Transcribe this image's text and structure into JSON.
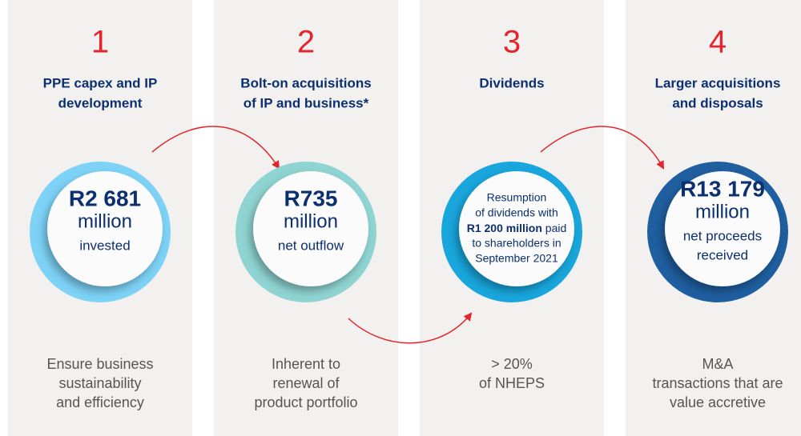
{
  "columns": [
    {
      "number": "1",
      "heading": [
        "PPE capex and IP",
        "development"
      ],
      "color": "#7dd2f6",
      "circle": {
        "figure": "R2 681",
        "unit": "million",
        "note": [
          "invested"
        ]
      },
      "footer": [
        "Ensure business",
        "sustainability",
        "and efficiency"
      ]
    },
    {
      "number": "2",
      "heading": [
        "Bolt-on acquisitions",
        "of IP and business*"
      ],
      "color": "#8fd4d2",
      "circle": {
        "figure": "R735",
        "unit": "million",
        "note": [
          "net outflow"
        ]
      },
      "footer": [
        "Inherent to",
        "renewal of",
        "product portfolio"
      ]
    },
    {
      "number": "3",
      "heading": [
        "Dividends"
      ],
      "color": "#18a6dc",
      "circle": {
        "lines": [
          "Resumption",
          "of dividends with",
          {
            "bold": "R1 200 million",
            "text": " paid"
          },
          "to shareholders in",
          "September 2021"
        ]
      },
      "footer": [
        "> 20%",
        "of NHEPS"
      ]
    },
    {
      "number": "4",
      "heading": [
        "Larger acquisitions",
        "and disposals"
      ],
      "color": "#1f5e9f",
      "circle": {
        "figure": "R13 179",
        "unit": "million",
        "note": [
          "net proceeds",
          "received"
        ]
      },
      "footer": [
        "M&A",
        "transactions that are",
        "value accretive"
      ]
    }
  ]
}
